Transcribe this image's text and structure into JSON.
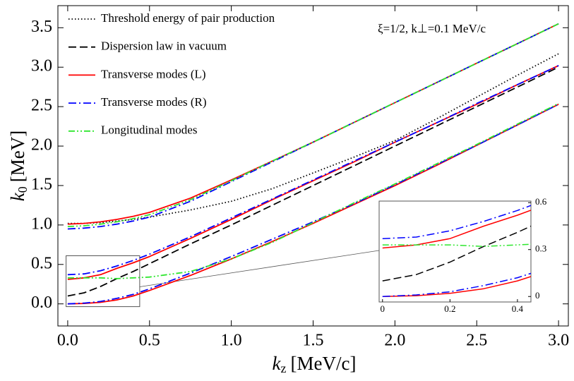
{
  "chart_data": {
    "type": "line",
    "xlabel": {
      "symbol": "k",
      "sub": "z",
      "unit": "[MeV/c]"
    },
    "ylabel": {
      "symbol": "k",
      "sub": "0",
      "unit": "[MeV]"
    },
    "annotation": "ξ=1/2, k⊥=0.1 MeV/c",
    "xlim": [
      -0.06,
      3.06
    ],
    "ylim": [
      -0.28,
      3.78
    ],
    "xticks": [
      {
        "value": 0,
        "label": "0.0"
      },
      0.5,
      {
        "value": 1,
        "label": "1.0"
      },
      1.5,
      {
        "value": 2,
        "label": "2.0"
      },
      2.5,
      {
        "value": 3,
        "label": "3.0"
      }
    ],
    "yticks": [
      {
        "value": 0,
        "label": "0.0"
      },
      0.5,
      {
        "value": 1,
        "label": "1.0"
      },
      1.5,
      {
        "value": 2,
        "label": "2.0"
      },
      2.5,
      {
        "value": 3,
        "label": "3.0"
      },
      3.5
    ],
    "legend": "top-left",
    "x": [
      0,
      0.1,
      0.2,
      0.3,
      0.4,
      0.5,
      0.75,
      1.0,
      1.25,
      1.5,
      1.75,
      2.0,
      2.25,
      2.5,
      2.75,
      3.0
    ],
    "series": [
      {
        "name": "Threshold energy of pair production",
        "color": "#000000",
        "style": "dotted",
        "branches": [
          [
            1.02,
            1.02,
            1.03,
            1.05,
            1.07,
            1.1,
            1.19,
            1.3,
            1.46,
            1.66,
            1.86,
            2.07,
            2.34,
            2.62,
            2.9,
            3.17
          ]
        ]
      },
      {
        "name": "Dispersion law in vacuum",
        "color": "#000000",
        "style": "dashed",
        "branches": [
          [
            0.1,
            0.14,
            0.22,
            0.32,
            0.41,
            0.51,
            0.76,
            1.0,
            1.25,
            1.5,
            1.75,
            2.0,
            2.25,
            2.5,
            2.75,
            3.0
          ]
        ]
      },
      {
        "name": "Transverse modes (L)",
        "color": "#ff0000",
        "style": "solid",
        "branches": [
          [
            1.01,
            1.02,
            1.04,
            1.07,
            1.11,
            1.16,
            1.34,
            1.57,
            1.81,
            2.05,
            2.3,
            2.55,
            2.8,
            3.05,
            3.3,
            3.55
          ],
          [
            0.31,
            0.33,
            0.37,
            0.45,
            0.52,
            0.6,
            0.83,
            1.07,
            1.32,
            1.56,
            1.8,
            2.05,
            2.29,
            2.53,
            2.78,
            3.02
          ],
          [
            0,
            0.005,
            0.02,
            0.05,
            0.1,
            0.17,
            0.36,
            0.57,
            0.79,
            1.02,
            1.26,
            1.5,
            1.75,
            2.01,
            2.27,
            2.53
          ]
        ]
      },
      {
        "name": "Transverse modes (R)",
        "color": "#0000ff",
        "style": "dashdot",
        "branches": [
          [
            0.95,
            0.96,
            0.98,
            1.01,
            1.05,
            1.1,
            1.3,
            1.55,
            1.8,
            2.05,
            2.3,
            2.55,
            2.8,
            3.05,
            3.3,
            3.55
          ],
          [
            0.37,
            0.38,
            0.42,
            0.48,
            0.55,
            0.63,
            0.85,
            1.09,
            1.33,
            1.57,
            1.81,
            2.05,
            2.29,
            2.54,
            2.78,
            3.02
          ],
          [
            0,
            0.01,
            0.03,
            0.07,
            0.12,
            0.19,
            0.39,
            0.6,
            0.82,
            1.04,
            1.27,
            1.51,
            1.76,
            2.01,
            2.27,
            2.53
          ]
        ]
      },
      {
        "name": "Longitudinal modes",
        "color": "#2ee62e",
        "style": "dashdotdot",
        "branches": [
          [
            0.98,
            0.99,
            1.01,
            1.04,
            1.08,
            1.13,
            1.32,
            1.56,
            1.81,
            2.05,
            2.3,
            2.55,
            2.8,
            3.05,
            3.3,
            3.55
          ],
          [
            0.33,
            0.33,
            0.33,
            0.32,
            0.33,
            0.34,
            0.41,
            0.57,
            0.78,
            1.03,
            1.28,
            1.52,
            1.77,
            2.02,
            2.28,
            2.54
          ]
        ]
      }
    ],
    "inset": {
      "xlim": [
        -0.01,
        0.44
      ],
      "ylim": [
        -0.035,
        0.61
      ],
      "xticks": [
        0,
        0.2,
        0.4
      ],
      "yticks": [
        0,
        0.3,
        0.6
      ]
    }
  }
}
